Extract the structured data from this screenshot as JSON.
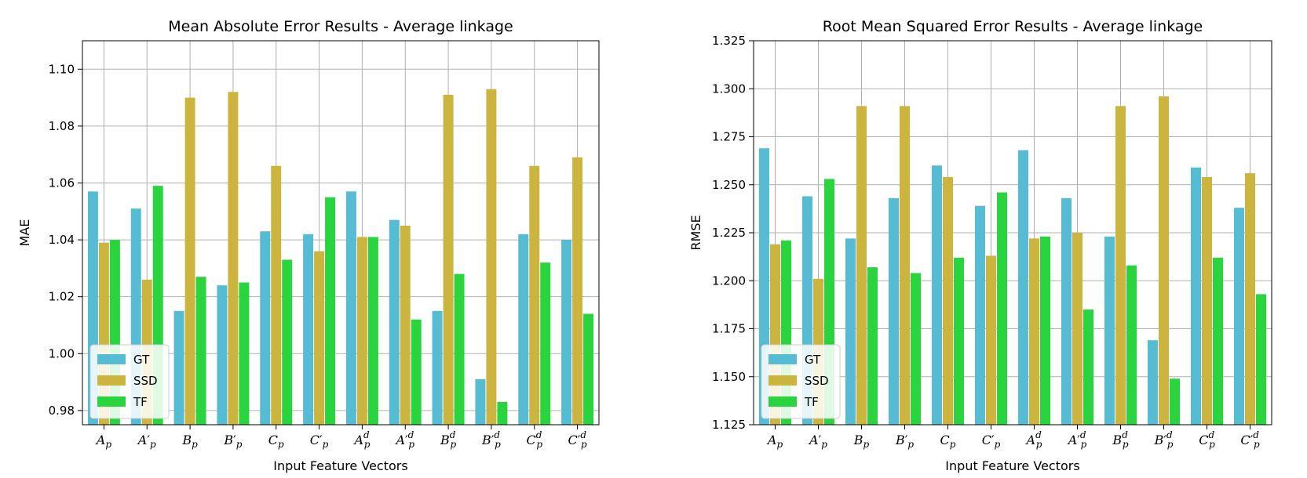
{
  "chart_data": [
    {
      "type": "bar",
      "title": "Mean Absolute Error Results - Average linkage",
      "xlabel": "Input Feature Vectors",
      "ylabel": "MAE",
      "ylim": [
        0.975,
        1.11
      ],
      "yticks": [
        0.98,
        1.0,
        1.02,
        1.04,
        1.06,
        1.08,
        1.1
      ],
      "ytick_labels": [
        "0.98",
        "1.00",
        "1.02",
        "1.04",
        "1.06",
        "1.08",
        "1.10"
      ],
      "grid": true,
      "legend_position": "lower-left",
      "categories": [
        {
          "base": "A",
          "prime": false,
          "sup": "",
          "sub": "p"
        },
        {
          "base": "A",
          "prime": true,
          "sup": "",
          "sub": "p"
        },
        {
          "base": "B",
          "prime": false,
          "sup": "",
          "sub": "p"
        },
        {
          "base": "B",
          "prime": true,
          "sup": "",
          "sub": "p"
        },
        {
          "base": "C",
          "prime": false,
          "sup": "",
          "sub": "p"
        },
        {
          "base": "C",
          "prime": true,
          "sup": "",
          "sub": "p"
        },
        {
          "base": "A",
          "prime": false,
          "sup": "d",
          "sub": "p"
        },
        {
          "base": "A",
          "prime": true,
          "sup": "d",
          "sub": "p"
        },
        {
          "base": "B",
          "prime": false,
          "sup": "d",
          "sub": "p"
        },
        {
          "base": "B",
          "prime": true,
          "sup": "d",
          "sub": "p"
        },
        {
          "base": "C",
          "prime": false,
          "sup": "d",
          "sub": "p"
        },
        {
          "base": "C",
          "prime": true,
          "sup": "d",
          "sub": "p"
        }
      ],
      "series": [
        {
          "name": "GT",
          "color": "#56bcd4",
          "values": [
            1.057,
            1.051,
            1.015,
            1.024,
            1.043,
            1.042,
            1.057,
            1.047,
            1.015,
            0.991,
            1.042,
            1.04
          ]
        },
        {
          "name": "SSD",
          "color": "#ccb53e",
          "values": [
            1.039,
            1.026,
            1.09,
            1.092,
            1.066,
            1.036,
            1.041,
            1.045,
            1.091,
            1.093,
            1.066,
            1.069
          ]
        },
        {
          "name": "TF",
          "color": "#2ad43f",
          "values": [
            1.04,
            1.059,
            1.027,
            1.025,
            1.033,
            1.055,
            1.041,
            1.012,
            1.028,
            0.983,
            1.032,
            1.014
          ]
        }
      ]
    },
    {
      "type": "bar",
      "title": "Root Mean Squared Error Results - Average linkage",
      "xlabel": "Input Feature Vectors",
      "ylabel": "RMSE",
      "ylim": [
        1.125,
        1.325
      ],
      "yticks": [
        1.125,
        1.15,
        1.175,
        1.2,
        1.225,
        1.25,
        1.275,
        1.3,
        1.325
      ],
      "ytick_labels": [
        "1.125",
        "1.150",
        "1.175",
        "1.200",
        "1.225",
        "1.250",
        "1.275",
        "1.300",
        "1.325"
      ],
      "grid": true,
      "legend_position": "lower-left",
      "categories": [
        {
          "base": "A",
          "prime": false,
          "sup": "",
          "sub": "p"
        },
        {
          "base": "A",
          "prime": true,
          "sup": "",
          "sub": "p"
        },
        {
          "base": "B",
          "prime": false,
          "sup": "",
          "sub": "p"
        },
        {
          "base": "B",
          "prime": true,
          "sup": "",
          "sub": "p"
        },
        {
          "base": "C",
          "prime": false,
          "sup": "",
          "sub": "p"
        },
        {
          "base": "C",
          "prime": true,
          "sup": "",
          "sub": "p"
        },
        {
          "base": "A",
          "prime": false,
          "sup": "d",
          "sub": "p"
        },
        {
          "base": "A",
          "prime": true,
          "sup": "d",
          "sub": "p"
        },
        {
          "base": "B",
          "prime": false,
          "sup": "d",
          "sub": "p"
        },
        {
          "base": "B",
          "prime": true,
          "sup": "d",
          "sub": "p"
        },
        {
          "base": "C",
          "prime": false,
          "sup": "d",
          "sub": "p"
        },
        {
          "base": "C",
          "prime": true,
          "sup": "d",
          "sub": "p"
        }
      ],
      "series": [
        {
          "name": "GT",
          "color": "#56bcd4",
          "values": [
            1.269,
            1.244,
            1.222,
            1.243,
            1.26,
            1.239,
            1.268,
            1.243,
            1.223,
            1.169,
            1.259,
            1.238
          ]
        },
        {
          "name": "SSD",
          "color": "#ccb53e",
          "values": [
            1.219,
            1.201,
            1.291,
            1.291,
            1.254,
            1.213,
            1.222,
            1.225,
            1.291,
            1.296,
            1.254,
            1.256
          ]
        },
        {
          "name": "TF",
          "color": "#2ad43f",
          "values": [
            1.221,
            1.253,
            1.207,
            1.204,
            1.212,
            1.246,
            1.223,
            1.185,
            1.208,
            1.149,
            1.212,
            1.193
          ]
        }
      ]
    }
  ]
}
